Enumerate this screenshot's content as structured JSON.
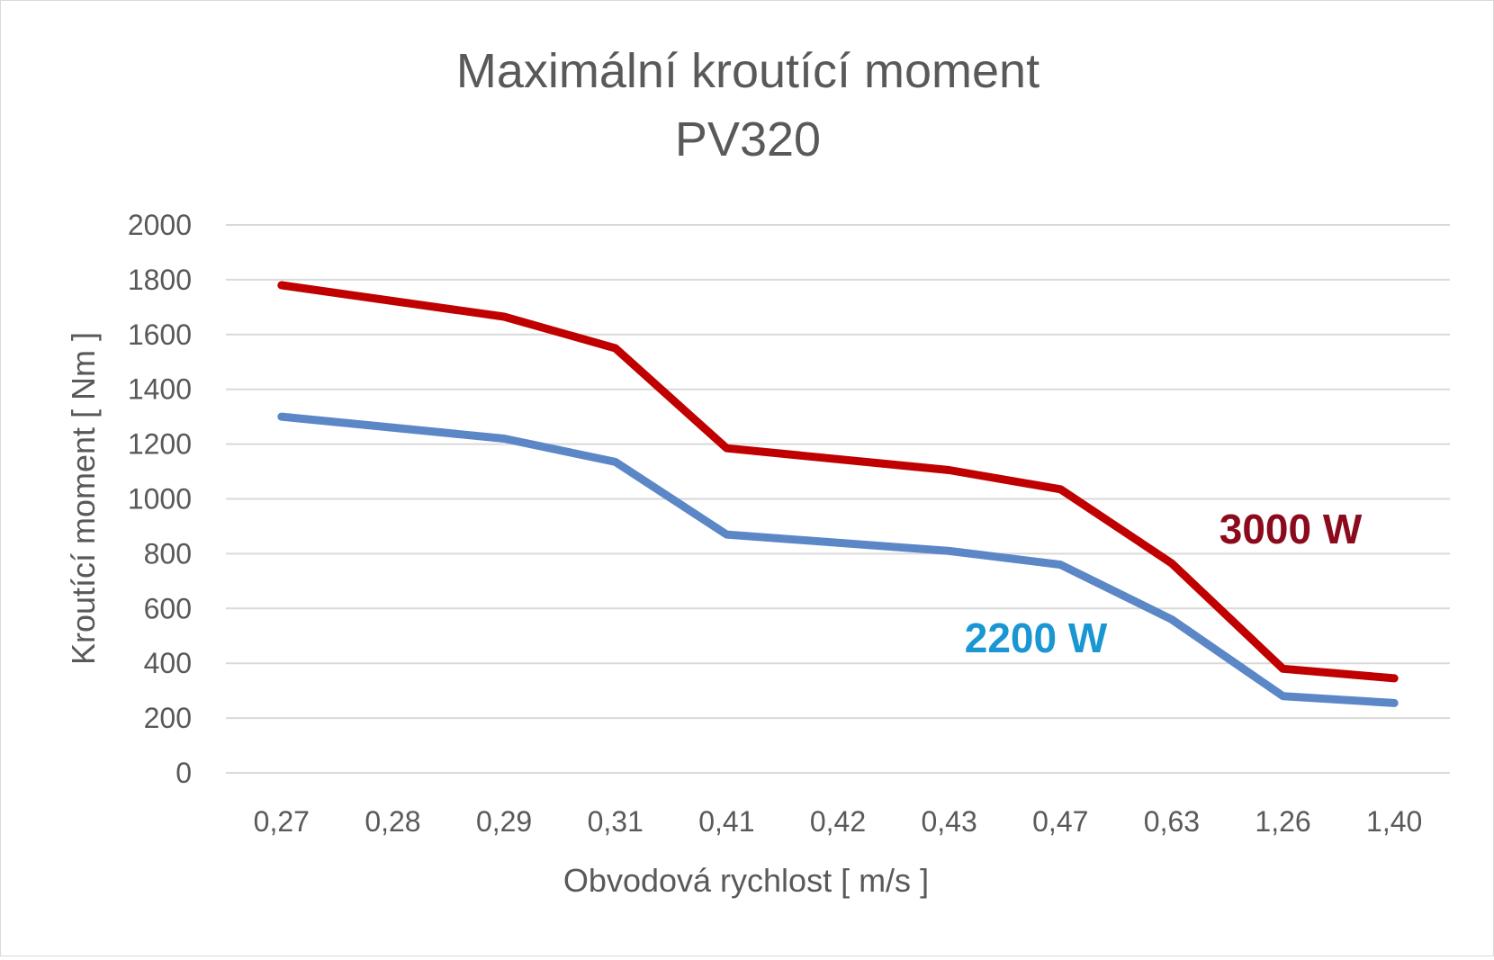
{
  "chart_data": {
    "type": "line",
    "title": "Maximální kroutící moment",
    "subtitle": "PV320",
    "xlabel": "Obvodová rychlost  [ m/s ]",
    "ylabel": "Kroutící moment  [ Nm ]",
    "categories": [
      "0,27",
      "0,28",
      "0,29",
      "0,31",
      "0,41",
      "0,42",
      "0,43",
      "0,47",
      "0,63",
      "1,26",
      "1,40"
    ],
    "ylim": [
      0,
      2000
    ],
    "yticks": [
      "0",
      "200",
      "400",
      "600",
      "800",
      "1000",
      "1200",
      "1400",
      "1600",
      "1800",
      "2000"
    ],
    "grid": true,
    "series": [
      {
        "name": "3000 W",
        "color": "#c00000",
        "label_color": "#8b0a1c",
        "values": [
          1780,
          null,
          1665,
          1550,
          1185,
          null,
          1105,
          1035,
          765,
          380,
          345
        ]
      },
      {
        "name": "2200 W",
        "color": "#5b87c7",
        "label_color": "#1a96d2",
        "values": [
          1300,
          null,
          1220,
          1135,
          870,
          null,
          810,
          760,
          560,
          280,
          255
        ]
      }
    ]
  }
}
